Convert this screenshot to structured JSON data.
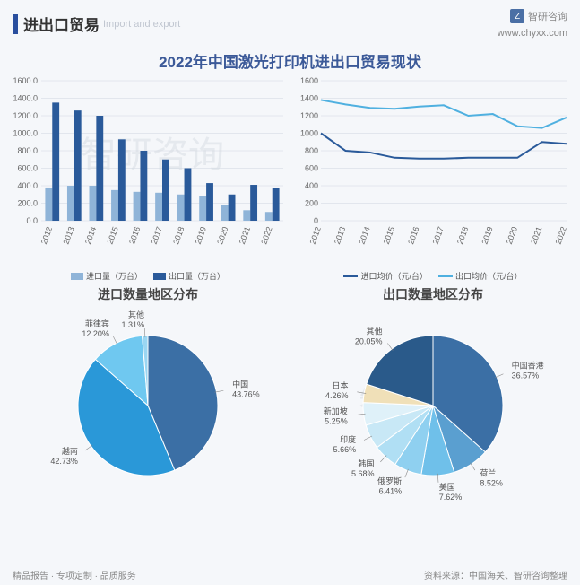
{
  "header": {
    "title_cn": "进出口贸易",
    "title_en": "Import and export",
    "brand": "智研咨询",
    "url": "www.chyxx.com"
  },
  "main_title": "2022年中国激光打印机进出口贸易现状",
  "bar_chart": {
    "type": "bar",
    "categories": [
      "2012",
      "2013",
      "2014",
      "2015",
      "2016",
      "2017",
      "2018",
      "2019",
      "2020",
      "2021",
      "2022"
    ],
    "series": [
      {
        "name": "进口量（万台）",
        "color": "#8fb4d8",
        "values": [
          380,
          400,
          400,
          350,
          330,
          320,
          300,
          280,
          180,
          120,
          100
        ]
      },
      {
        "name": "出口量（万台）",
        "color": "#2a5a9a",
        "values": [
          1350,
          1260,
          1200,
          930,
          800,
          700,
          600,
          430,
          300,
          410,
          370
        ]
      }
    ],
    "ylim": [
      0,
      1600
    ],
    "ytick_step": 200,
    "background": "#f5f7fa",
    "grid_color": "#d0d6e0"
  },
  "line_chart": {
    "type": "line",
    "categories": [
      "2012",
      "2013",
      "2014",
      "2015",
      "2016",
      "2017",
      "2018",
      "2019",
      "2020",
      "2021",
      "2022"
    ],
    "series": [
      {
        "name": "进口均价（元/台）",
        "color": "#2a5a9a",
        "values": [
          1000,
          800,
          780,
          720,
          710,
          710,
          720,
          720,
          720,
          900,
          880
        ]
      },
      {
        "name": "出口均价（元/台）",
        "color": "#4fb0e0",
        "values": [
          1380,
          1330,
          1290,
          1280,
          1305,
          1320,
          1200,
          1220,
          1080,
          1060,
          1180
        ]
      }
    ],
    "ylim": [
      0,
      1600
    ],
    "ytick_step": 200,
    "background": "#f5f7fa",
    "grid_color": "#d0d6e0"
  },
  "pie_import": {
    "title": "进口数量地区分布",
    "type": "pie",
    "slices": [
      {
        "label": "中国",
        "value": 43.76,
        "color": "#3b6fa5"
      },
      {
        "label": "越南",
        "value": 42.73,
        "color": "#2a98d8"
      },
      {
        "label": "菲律宾",
        "value": 12.2,
        "color": "#6fc8f0"
      },
      {
        "label": "其他",
        "value": 1.31,
        "color": "#9ad6f2"
      }
    ]
  },
  "pie_export": {
    "title": "出口数量地区分布",
    "type": "pie",
    "slices": [
      {
        "label": "中国香港",
        "value": 36.57,
        "color": "#3b6fa5"
      },
      {
        "label": "荷兰",
        "value": 8.52,
        "color": "#5a9fd0"
      },
      {
        "label": "美国",
        "value": 7.62,
        "color": "#6fc0ea"
      },
      {
        "label": "俄罗斯",
        "value": 6.41,
        "color": "#8fd0f0"
      },
      {
        "label": "韩国",
        "value": 5.68,
        "color": "#b0dff4"
      },
      {
        "label": "印度",
        "value": 5.66,
        "color": "#c8e8f6"
      },
      {
        "label": "新加坡",
        "value": 5.25,
        "color": "#dff1f9"
      },
      {
        "label": "日本",
        "value": 4.26,
        "color": "#f0e0b8"
      },
      {
        "label": "其他",
        "value": 20.05,
        "color": "#2a5a8a"
      }
    ]
  },
  "footer": {
    "left": "精品报告 · 专项定制 · 品质服务",
    "right": "资料来源：中国海关、智研咨询整理"
  },
  "watermark": "智研咨询"
}
